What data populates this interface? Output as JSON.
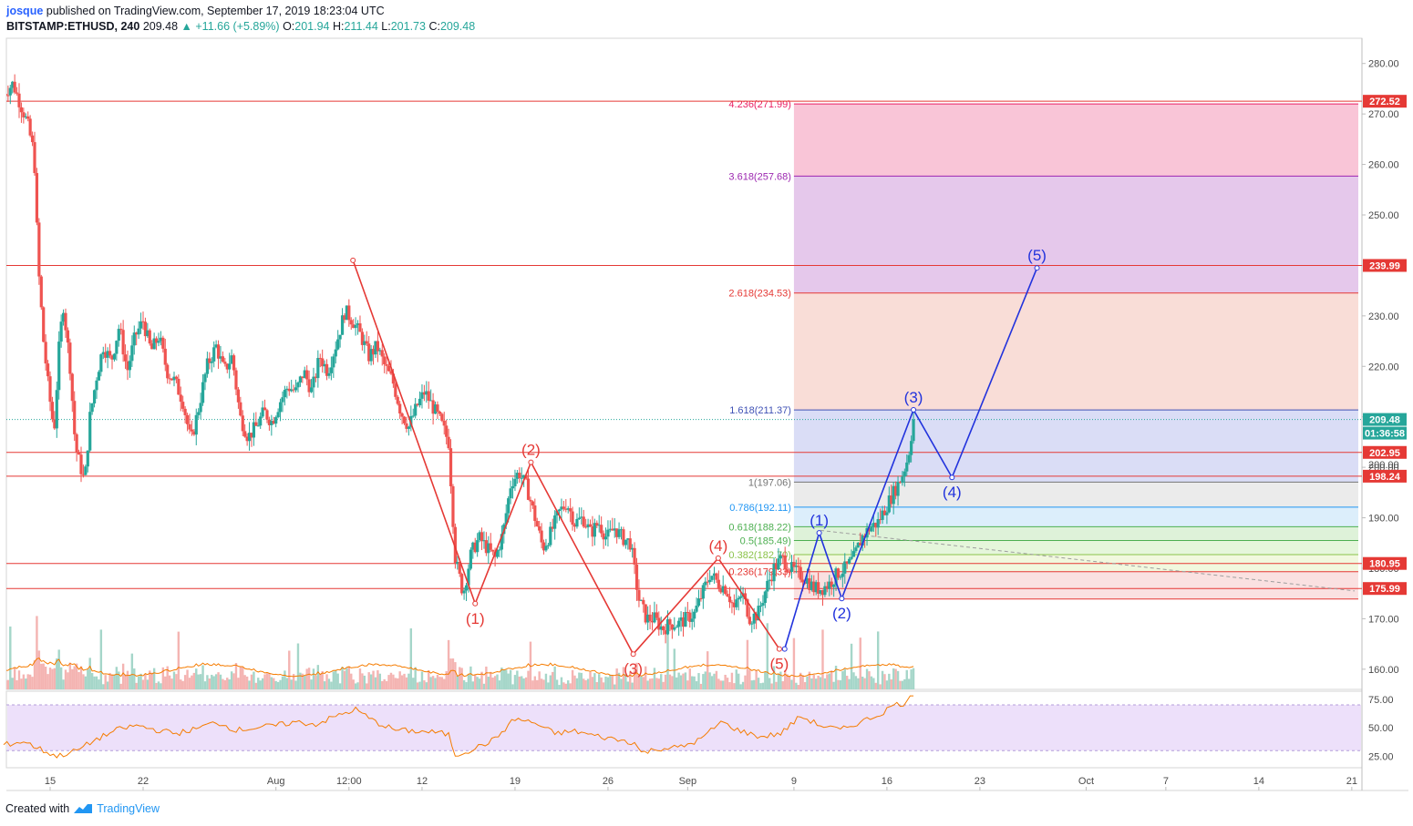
{
  "header": {
    "user": "josque",
    "published": "published on TradingView.com, September 17, 2019 18:23:04 UTC",
    "symbol": "BITSTAMP:ETHUSD, 240",
    "last": "209.48",
    "change": "▲ +11.66 (+5.89%)",
    "o_label": "O:",
    "o_value": "201.94",
    "h_label": "H:",
    "h_value": "211.44",
    "l_label": "L:",
    "l_value": "201.73",
    "c_label": "C:",
    "c_value": "209.48"
  },
  "footer": {
    "created": "Created with",
    "brand": "TradingView"
  },
  "colors": {
    "up": "#26a69a",
    "down": "#ef5350",
    "resistance": "#e53935",
    "wave_red": "#e53935",
    "wave_blue": "#2233dd",
    "rsi": "#f57c00",
    "volume_ma": "#f57c00",
    "bg": "#ffffff"
  },
  "chart_data": {
    "type": "candlestick",
    "symbol": "BITSTAMP:ETHUSD",
    "interval": "240",
    "y_range": [
      156,
      285
    ],
    "y_ticks": [
      "280.00",
      "270.00",
      "260.00",
      "250.00",
      "240.00",
      "230.00",
      "220.00",
      "210.00",
      "200.00",
      "190.00",
      "180.00",
      "170.00",
      "160.00"
    ],
    "x_ticks": [
      {
        "label": "15",
        "day": 15
      },
      {
        "label": "22",
        "day": 22
      },
      {
        "label": "Aug",
        "day": 32
      },
      {
        "label": "12:00",
        "day": 37.5
      },
      {
        "label": "12",
        "day": 43
      },
      {
        "label": "19",
        "day": 50
      },
      {
        "label": "26",
        "day": 57
      },
      {
        "label": "Sep",
        "day": 63
      },
      {
        "label": "9",
        "day": 71
      },
      {
        "label": "16",
        "day": 78
      },
      {
        "label": "23",
        "day": 85
      },
      {
        "label": "Oct",
        "day": 93
      },
      {
        "label": "7",
        "day": 99
      },
      {
        "label": "14",
        "day": 106
      },
      {
        "label": "21",
        "day": 113
      }
    ],
    "price_path": [
      [
        11.5,
        274
      ],
      [
        12.2,
        276
      ],
      [
        12.9,
        271
      ],
      [
        13.3,
        268
      ],
      [
        13.8,
        262
      ],
      [
        14.1,
        240
      ],
      [
        14.5,
        225
      ],
      [
        14.9,
        215
      ],
      [
        15.3,
        207
      ],
      [
        15.7,
        225
      ],
      [
        16.0,
        232
      ],
      [
        16.5,
        220
      ],
      [
        16.9,
        204
      ],
      [
        17.2,
        201
      ],
      [
        17.6,
        197
      ],
      [
        18.0,
        210
      ],
      [
        18.5,
        218
      ],
      [
        19.0,
        224
      ],
      [
        19.6,
        221
      ],
      [
        20.2,
        228
      ],
      [
        20.8,
        219
      ],
      [
        21.4,
        226
      ],
      [
        22.0,
        229
      ],
      [
        22.6,
        223
      ],
      [
        23.2,
        226
      ],
      [
        23.8,
        219
      ],
      [
        24.4,
        217
      ],
      [
        25.0,
        213
      ],
      [
        25.6,
        205
      ],
      [
        26.2,
        212
      ],
      [
        26.8,
        220
      ],
      [
        27.5,
        224
      ],
      [
        28.1,
        219
      ],
      [
        28.7,
        222
      ],
      [
        29.3,
        210
      ],
      [
        29.9,
        206
      ],
      [
        30.5,
        208
      ],
      [
        31.1,
        211
      ],
      [
        31.7,
        209
      ],
      [
        32.3,
        213
      ],
      [
        32.9,
        216
      ],
      [
        33.5,
        215
      ],
      [
        34.1,
        219
      ],
      [
        34.7,
        215
      ],
      [
        35.3,
        222
      ],
      [
        35.9,
        219
      ],
      [
        36.6,
        225
      ],
      [
        37.2,
        231
      ],
      [
        37.8,
        229
      ],
      [
        38.4,
        226
      ],
      [
        39.0,
        222
      ],
      [
        39.6,
        224
      ],
      [
        40.2,
        220
      ],
      [
        40.8,
        217
      ],
      [
        41.4,
        211
      ],
      [
        42.0,
        208
      ],
      [
        42.6,
        212
      ],
      [
        43.2,
        215
      ],
      [
        43.8,
        212
      ],
      [
        44.4,
        209
      ],
      [
        45.0,
        205
      ],
      [
        45.5,
        182
      ],
      [
        46.1,
        175
      ],
      [
        46.7,
        183
      ],
      [
        47.3,
        186
      ],
      [
        47.9,
        184
      ],
      [
        48.5,
        182
      ],
      [
        49.1,
        187
      ],
      [
        49.7,
        197
      ],
      [
        50.3,
        199
      ],
      [
        50.9,
        196
      ],
      [
        51.5,
        190
      ],
      [
        52.1,
        184
      ],
      [
        52.7,
        187
      ],
      [
        53.3,
        191
      ],
      [
        53.9,
        193
      ],
      [
        54.5,
        189
      ],
      [
        55.1,
        190
      ],
      [
        55.7,
        187
      ],
      [
        56.3,
        189
      ],
      [
        56.9,
        186
      ],
      [
        57.5,
        188
      ],
      [
        58.1,
        186
      ],
      [
        58.7,
        185
      ],
      [
        59.3,
        174
      ],
      [
        59.9,
        170
      ],
      [
        60.5,
        170
      ],
      [
        61.1,
        168
      ],
      [
        61.7,
        169
      ],
      [
        62.3,
        169
      ],
      [
        62.9,
        170
      ],
      [
        63.5,
        171
      ],
      [
        64.1,
        175
      ],
      [
        64.7,
        179
      ],
      [
        65.3,
        177
      ],
      [
        65.9,
        176
      ],
      [
        66.5,
        172
      ],
      [
        67.1,
        175
      ],
      [
        67.7,
        170
      ],
      [
        68.3,
        171
      ],
      [
        68.9,
        176
      ],
      [
        69.5,
        180
      ],
      [
        70.1,
        182
      ],
      [
        70.7,
        180
      ],
      [
        71.3,
        179
      ],
      [
        71.9,
        178
      ],
      [
        72.5,
        176
      ],
      [
        73.1,
        176
      ],
      [
        73.7,
        177
      ],
      [
        74.3,
        179
      ],
      [
        74.9,
        180
      ],
      [
        75.5,
        182
      ],
      [
        76.1,
        186
      ],
      [
        76.7,
        188
      ],
      [
        77.3,
        189
      ],
      [
        77.9,
        192
      ],
      [
        78.5,
        195
      ],
      [
        79.1,
        198
      ],
      [
        79.6,
        202
      ],
      [
        80.0,
        209.5
      ]
    ],
    "volume_profile": "relative bar heights, tallest near the sell-off days and latest rally",
    "resistance_levels": [
      {
        "price": 272.52,
        "label": "272.52"
      },
      {
        "price": 239.99,
        "label": "239.99"
      },
      {
        "price": 202.95,
        "label": "202.95"
      },
      {
        "price": 198.24,
        "label": "198.24"
      },
      {
        "price": 180.95,
        "label": "180.95"
      },
      {
        "price": 175.99,
        "label": "175.99"
      }
    ],
    "current_price": {
      "price": 209.48,
      "label": "209.48",
      "countdown": "01:36:58",
      "partial_tick": "200.00"
    },
    "fibonacci": {
      "start_day": 71,
      "end_day": 113,
      "levels": [
        {
          "ratio": "4.236",
          "price": 271.99,
          "label": "4.236(271.99)",
          "color": "#e91e63",
          "fill": "#f8bbd0"
        },
        {
          "ratio": "3.618",
          "price": 257.68,
          "label": "3.618(257.68)",
          "color": "#9c27b0",
          "fill": "#e1bee7"
        },
        {
          "ratio": "2.618",
          "price": 234.53,
          "label": "2.618(234.53)",
          "color": "#e53935",
          "fill": "#f8d7d0"
        },
        {
          "ratio": "1.618",
          "price": 211.37,
          "label": "1.618(211.37)",
          "color": "#3f51b5",
          "fill": "#d3d7f5"
        },
        {
          "ratio": "1",
          "price": 197.06,
          "label": "1(197.06)",
          "color": "#757575",
          "fill": "#e8e8e8"
        },
        {
          "ratio": "0.786",
          "price": 192.11,
          "label": "0.786(192.11)",
          "color": "#2196f3",
          "fill": "#d6ebfa"
        },
        {
          "ratio": "0.618",
          "price": 188.22,
          "label": "0.618(188.22)",
          "color": "#4caf50",
          "fill": "#d8f0d2"
        },
        {
          "ratio": "0.5",
          "price": 185.49,
          "label": "0.5(185.49)",
          "color": "#4caf50",
          "fill": "#e0f5d5"
        },
        {
          "ratio": "0.382",
          "price": 182.7,
          "label": "0.382(182.70)",
          "color": "#8bc34a",
          "fill": "#eef7d8"
        },
        {
          "ratio": "0.236",
          "price": 179.33,
          "label": "0.236(179.33)",
          "color": "#e53935",
          "fill": "#f9dcdc"
        },
        {
          "ratio": "0",
          "price": 173.91,
          "label": "",
          "color": "#e53935",
          "fill": "#f9dcdc"
        }
      ]
    },
    "wave_red": {
      "points": [
        [
          37.8,
          241
        ],
        [
          47.0,
          173
        ],
        [
          51.2,
          201
        ],
        [
          58.9,
          163
        ],
        [
          65.3,
          182
        ],
        [
          69.9,
          164
        ]
      ],
      "labels": [
        "",
        "(1)",
        "(2)",
        "(3)",
        "(4)",
        "(5)"
      ]
    },
    "wave_blue": {
      "points": [
        [
          70.3,
          164
        ],
        [
          72.9,
          187
        ],
        [
          74.6,
          174
        ],
        [
          80.0,
          211.4
        ],
        [
          82.9,
          198
        ],
        [
          89.3,
          239.5
        ]
      ],
      "labels": [
        "",
        "(1)",
        "(2)",
        "(3)",
        "(4)",
        "(5)"
      ]
    },
    "rsi": {
      "y_range": [
        15,
        82
      ],
      "ticks": [
        "75.00",
        "50.00",
        "25.00"
      ],
      "band": [
        30,
        70
      ],
      "path": [
        [
          11.5,
          35
        ],
        [
          13,
          38
        ],
        [
          14.5,
          30
        ],
        [
          15.5,
          25
        ],
        [
          17,
          30
        ],
        [
          18.5,
          40
        ],
        [
          20,
          48
        ],
        [
          21.5,
          52
        ],
        [
          23,
          48
        ],
        [
          24.5,
          45
        ],
        [
          26,
          49
        ],
        [
          27.5,
          55
        ],
        [
          29,
          48
        ],
        [
          30.5,
          50
        ],
        [
          32,
          52
        ],
        [
          33.5,
          55
        ],
        [
          35,
          53
        ],
        [
          36.5,
          60
        ],
        [
          38,
          66
        ],
        [
          39.5,
          55
        ],
        [
          41,
          48
        ],
        [
          42.5,
          47
        ],
        [
          44,
          46
        ],
        [
          45,
          44
        ],
        [
          45.5,
          26
        ],
        [
          47,
          32
        ],
        [
          48.5,
          40
        ],
        [
          50,
          58
        ],
        [
          51.5,
          54
        ],
        [
          53,
          45
        ],
        [
          54.5,
          47
        ],
        [
          56,
          43
        ],
        [
          57.5,
          40
        ],
        [
          59,
          37
        ],
        [
          59.5,
          28
        ],
        [
          61,
          32
        ],
        [
          62.5,
          33
        ],
        [
          64,
          40
        ],
        [
          65.5,
          55
        ],
        [
          67,
          47
        ],
        [
          68.5,
          42
        ],
        [
          70,
          45
        ],
        [
          71.5,
          60
        ],
        [
          73,
          52
        ],
        [
          74.5,
          48
        ],
        [
          76,
          55
        ],
        [
          77.5,
          62
        ],
        [
          78.5,
          70
        ],
        [
          79.5,
          72
        ],
        [
          80,
          80
        ]
      ]
    }
  }
}
